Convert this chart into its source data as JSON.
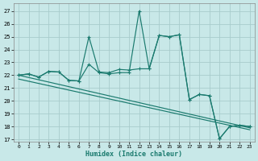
{
  "xlabel": "Humidex (Indice chaleur)",
  "bg_color": "#c8e8e8",
  "grid_color": "#a8cccc",
  "line_color": "#1a7a6e",
  "xlim": [
    -0.5,
    23.5
  ],
  "ylim": [
    16.8,
    27.6
  ],
  "yticks": [
    17,
    18,
    19,
    20,
    21,
    22,
    23,
    24,
    25,
    26,
    27
  ],
  "xticks": [
    0,
    1,
    2,
    3,
    4,
    5,
    6,
    7,
    8,
    9,
    10,
    11,
    12,
    13,
    14,
    15,
    16,
    17,
    18,
    19,
    20,
    21,
    22,
    23
  ],
  "line1_x": [
    0,
    1,
    2,
    3,
    4,
    5,
    6,
    7,
    8,
    9,
    10,
    11,
    12,
    13,
    14,
    15,
    16,
    17,
    18,
    19,
    20,
    21,
    22,
    23
  ],
  "line1_y": [
    22.0,
    22.1,
    21.85,
    22.3,
    22.25,
    21.6,
    21.55,
    25.0,
    22.25,
    22.2,
    22.45,
    22.4,
    22.5,
    22.5,
    25.1,
    25.0,
    25.15,
    20.1,
    20.5,
    20.4,
    17.05,
    18.0,
    18.1,
    18.0
  ],
  "line2_x": [
    0,
    1,
    2,
    3,
    4,
    5,
    6,
    7,
    8,
    9,
    10,
    11,
    12,
    13,
    14,
    15,
    16,
    17,
    18,
    19,
    20,
    21,
    22,
    23
  ],
  "line2_y": [
    22.0,
    22.1,
    21.85,
    22.3,
    22.25,
    21.6,
    21.55,
    22.85,
    22.2,
    22.1,
    22.2,
    22.2,
    27.0,
    22.5,
    25.1,
    25.0,
    25.15,
    20.1,
    20.5,
    20.4,
    17.05,
    18.0,
    18.1,
    18.0
  ],
  "line3_x": [
    0,
    23
  ],
  "line3_y": [
    22.0,
    17.9
  ],
  "line4_x": [
    0,
    23
  ],
  "line4_y": [
    21.7,
    17.75
  ]
}
